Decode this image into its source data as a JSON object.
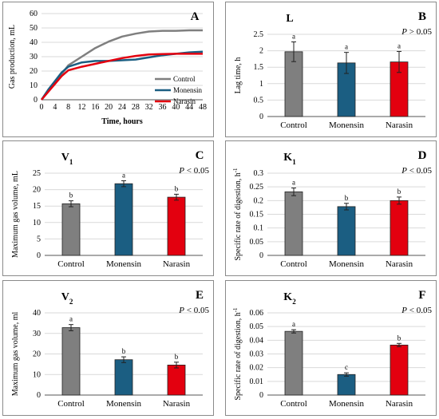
{
  "colors": {
    "control": "#7f7f7f",
    "monensin": "#1b5e82",
    "narasin": "#e3000f",
    "grid": "#d9d9d9",
    "axis": "#555555"
  },
  "chart_data": [
    {
      "id": "A",
      "panel_letter": "A",
      "type": "line",
      "ylabel": "Gas production, mL",
      "xlabel": "Time, hours",
      "ylim": [
        0,
        60
      ],
      "yticks": [
        0,
        10,
        20,
        30,
        40,
        50,
        60
      ],
      "xlim": [
        0,
        48
      ],
      "xticks": [
        0,
        4,
        8,
        12,
        16,
        20,
        24,
        28,
        32,
        36,
        40,
        44,
        48
      ],
      "grid": true,
      "legend": "right",
      "series": [
        {
          "name": "Control",
          "color": "#7f7f7f",
          "x": [
            0,
            2,
            4,
            6,
            8,
            12,
            16,
            20,
            24,
            28,
            32,
            36,
            40,
            44,
            48
          ],
          "y": [
            0,
            6,
            11,
            18,
            24,
            30,
            36,
            40.5,
            44,
            46,
            47.5,
            48,
            48,
            48.3,
            48.3
          ]
        },
        {
          "name": "Monensin",
          "color": "#1b5e82",
          "x": [
            0,
            2,
            4,
            6,
            8,
            12,
            16,
            20,
            24,
            28,
            32,
            36,
            40,
            44,
            48
          ],
          "y": [
            0,
            7,
            13,
            19,
            23,
            26,
            27,
            27,
            27.5,
            28,
            29.5,
            31,
            32,
            33,
            33.5
          ]
        },
        {
          "name": "Narasin",
          "color": "#e3000f",
          "x": [
            0,
            2,
            4,
            6,
            8,
            12,
            16,
            20,
            24,
            28,
            32,
            36,
            40,
            44,
            48
          ],
          "y": [
            0,
            5.5,
            11,
            16.5,
            20.5,
            23,
            25,
            27,
            29,
            30.5,
            31.5,
            31.8,
            32,
            32,
            32
          ]
        }
      ]
    },
    {
      "id": "B",
      "panel_letter": "B",
      "type": "bar",
      "title": "L",
      "ylabel": "Lag time, h",
      "pvalue": "P > 0.05",
      "ylim": [
        0,
        2.5
      ],
      "yticks": [
        "0",
        "0.5",
        "1",
        "1.5",
        "2",
        "2.5"
      ],
      "grid": true,
      "categories": [
        "Control",
        "Monensin",
        "Narasin"
      ],
      "values": [
        1.97,
        1.63,
        1.66
      ],
      "errors": [
        0.3,
        0.32,
        0.32
      ],
      "letters": [
        "a",
        "a",
        "a"
      ]
    },
    {
      "id": "C",
      "panel_letter": "C",
      "type": "bar",
      "title": "V",
      "title_sub": "1",
      "ylabel": "Maximum gas volume, mL",
      "pvalue": "P < 0.05",
      "ylim": [
        0,
        25
      ],
      "yticks": [
        "0",
        "5",
        "10",
        "15",
        "20",
        "25"
      ],
      "grid": true,
      "categories": [
        "Control",
        "Monensin",
        "Narasin"
      ],
      "values": [
        15.7,
        21.8,
        17.7
      ],
      "errors": [
        0.9,
        0.9,
        0.9
      ],
      "letters": [
        "b",
        "a",
        "b"
      ]
    },
    {
      "id": "D",
      "panel_letter": "D",
      "type": "bar",
      "title": "K",
      "title_sub": "1",
      "ylabel": "Specific rate of digestion, h",
      "ylabel_sup": "-1",
      "pvalue": "P < 0.05",
      "ylim": [
        0,
        0.3
      ],
      "yticks": [
        "0",
        "0.05",
        "0.1",
        "0.15",
        "0.2",
        "0.25",
        "0.3"
      ],
      "grid": true,
      "categories": [
        "Control",
        "Monensin",
        "Narasin"
      ],
      "values": [
        0.232,
        0.178,
        0.2
      ],
      "errors": [
        0.014,
        0.012,
        0.013
      ],
      "letters": [
        "a",
        "b",
        "b"
      ]
    },
    {
      "id": "E",
      "panel_letter": "E",
      "type": "bar",
      "title": "V",
      "title_sub": "2",
      "ylabel": "Maximum gas volume, ml",
      "pvalue": "P < 0.05",
      "ylim": [
        0,
        40
      ],
      "yticks": [
        "0",
        "10",
        "20",
        "30",
        "40"
      ],
      "grid": true,
      "categories": [
        "Control",
        "Monensin",
        "Narasin"
      ],
      "values": [
        32.8,
        17.2,
        14.6
      ],
      "errors": [
        1.5,
        1.4,
        1.4
      ],
      "letters": [
        "a",
        "b",
        "b"
      ]
    },
    {
      "id": "F",
      "panel_letter": "F",
      "type": "bar",
      "title": "K",
      "title_sub": "2",
      "ylabel": "Specific rate of digestion, h",
      "ylabel_sup": "-1",
      "pvalue": "P < 0.05",
      "ylim": [
        0,
        0.06
      ],
      "yticks": [
        "0",
        "0.01",
        "0.02",
        "0.03",
        "0.04",
        "0.05",
        "0.06"
      ],
      "grid": true,
      "categories": [
        "Control",
        "Monensin",
        "Narasin"
      ],
      "values": [
        0.0465,
        0.015,
        0.0365
      ],
      "errors": [
        0.0012,
        0.0012,
        0.0012
      ],
      "letters": [
        "a",
        "c",
        "b"
      ]
    }
  ]
}
